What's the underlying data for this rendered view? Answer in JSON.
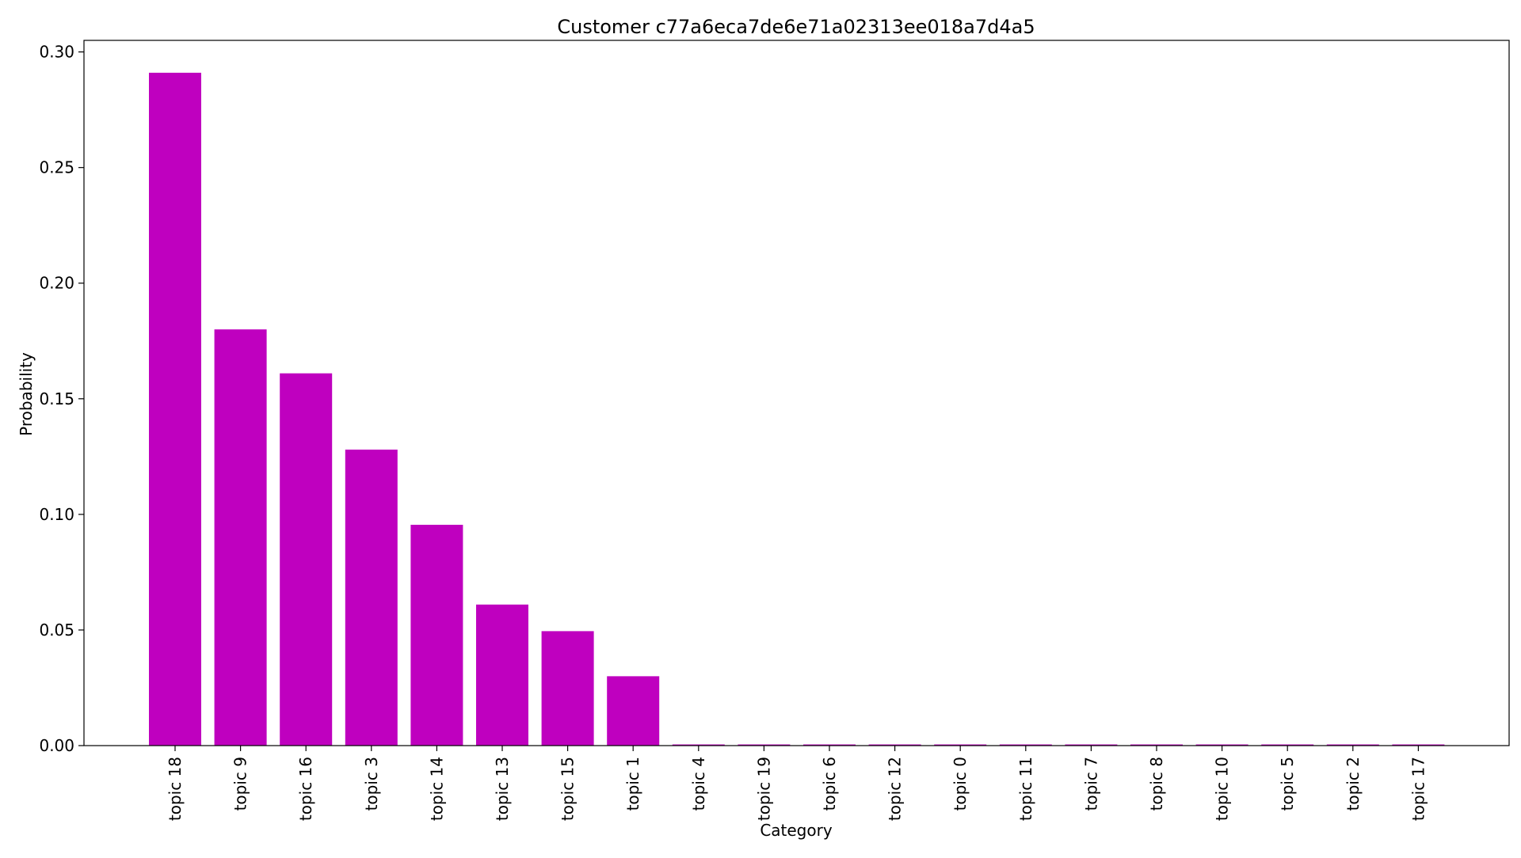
{
  "chart_data": {
    "type": "bar",
    "title": "Customer c77a6eca7de6e71a02313ee018a7d4a5",
    "xlabel": "Category",
    "ylabel": "Probability",
    "categories": [
      "topic 18",
      "topic 9",
      "topic 16",
      "topic 3",
      "topic 14",
      "topic 13",
      "topic 15",
      "topic 1",
      "topic 4",
      "topic 19",
      "topic 6",
      "topic 12",
      "topic 0",
      "topic 11",
      "topic 7",
      "topic 8",
      "topic 10",
      "topic 5",
      "topic 2",
      "topic 17"
    ],
    "values": [
      0.291,
      0.18,
      0.161,
      0.128,
      0.0955,
      0.061,
      0.0495,
      0.03,
      0.0005,
      0.0005,
      0.0005,
      0.0005,
      0.0005,
      0.0005,
      0.0005,
      0.0005,
      0.0005,
      0.0005,
      0.0005,
      0.0005
    ],
    "ylim": [
      0,
      0.305
    ],
    "yticks": [
      "0.00",
      "0.05",
      "0.10",
      "0.15",
      "0.20",
      "0.25",
      "0.30"
    ],
    "bar_color": "#bf00bf",
    "grid": false,
    "legend": "none"
  }
}
